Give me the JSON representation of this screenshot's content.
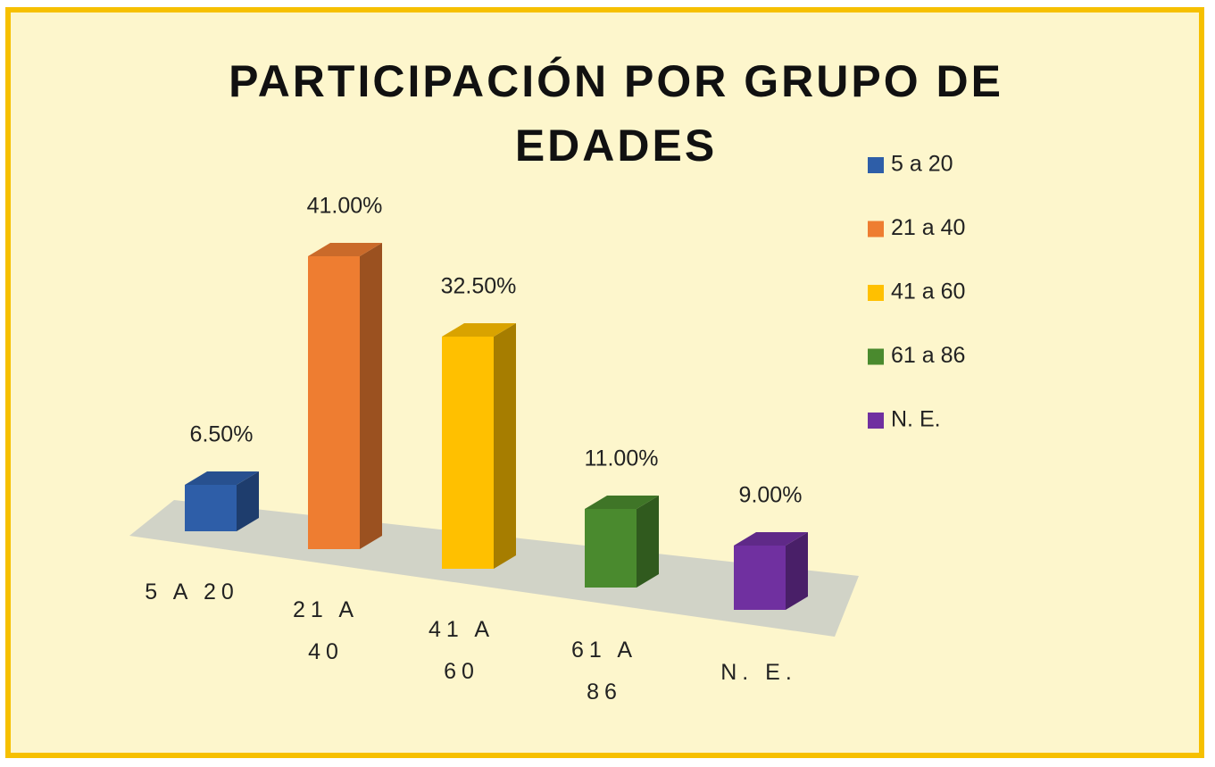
{
  "chart_data": {
    "type": "bar3d",
    "title": "PARTICIPACIÓN POR GRUPO DE EDADES",
    "categories": [
      "5 A 20",
      "21 A 40",
      "41 A 60",
      "61 A 86",
      "N. E."
    ],
    "values": [
      6.5,
      41,
      32.5,
      11,
      9
    ],
    "value_labels": [
      "6.50%",
      "41.00%",
      "32.50%",
      "11.00%",
      "9.00%"
    ],
    "colors": [
      "#2e5ea8",
      "#ee7d31",
      "#ffc000",
      "#4a8a2e",
      "#7030a0"
    ],
    "legend": [
      "5 a 20",
      "21 a 40",
      "41 a 60",
      "61 a 86",
      "N. E."
    ],
    "legend_position": "right"
  }
}
